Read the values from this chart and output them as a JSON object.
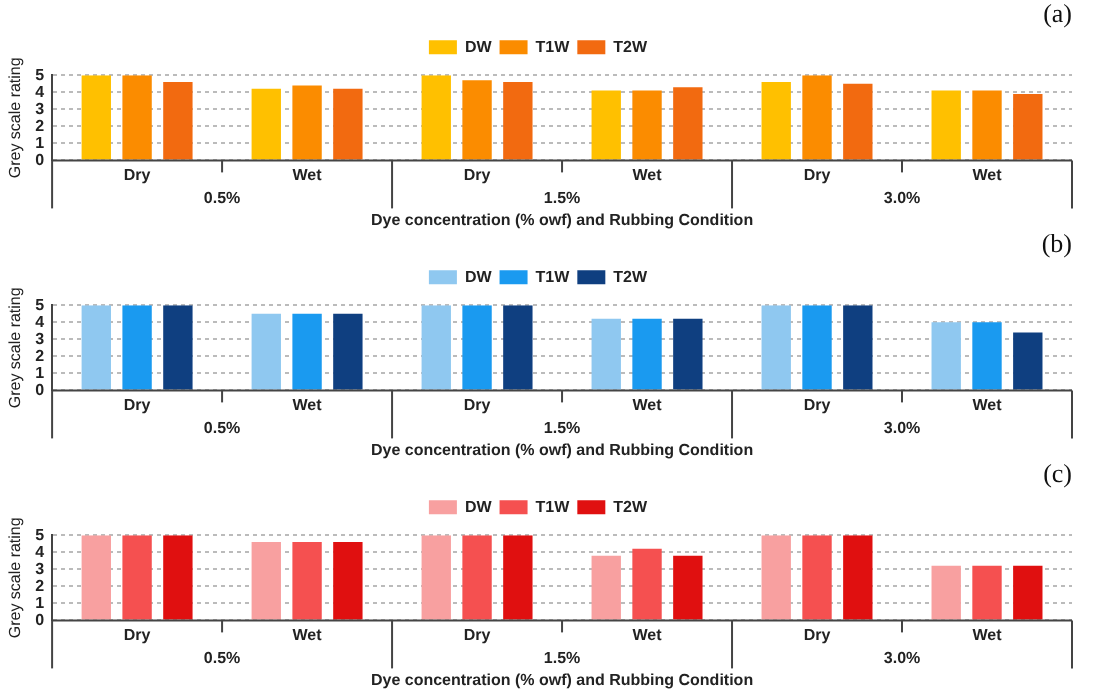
{
  "chart_data": [
    {
      "type": "bar",
      "title": "(a)",
      "ylabel": "Grey scale rating",
      "xlabel": "Dye concentration (% owf) and Rubbing Condition",
      "categories": [
        "Dry",
        "Wet",
        "Dry",
        "Wet",
        "Dry",
        "Wet"
      ],
      "annotations": [
        "0.5%",
        "1.5%",
        "3.0%"
      ],
      "series": [
        {
          "name": "DW",
          "color": "#ffc000",
          "values": [
            5,
            4.2,
            5,
            4.1,
            4.6,
            4.1
          ]
        },
        {
          "name": "T1W",
          "color": "#fb8c00",
          "values": [
            5,
            4.4,
            4.7,
            4.1,
            5,
            4.1
          ]
        },
        {
          "name": "T2W",
          "color": "#f26a10",
          "values": [
            4.6,
            4.2,
            4.6,
            4.3,
            4.5,
            3.9
          ]
        }
      ],
      "ylim": [
        0,
        5
      ],
      "yticks": [
        0,
        1,
        2,
        3,
        4,
        5
      ],
      "grid": "y",
      "legend": "top"
    },
    {
      "type": "bar",
      "title": "(b)",
      "ylabel": "Grey scale rating",
      "xlabel": "Dye concentration (% owf) and Rubbing Condition",
      "categories": [
        "Dry",
        "Wet",
        "Dry",
        "Wet",
        "Dry",
        "Wet"
      ],
      "annotations": [
        "0.5%",
        "1.5%",
        "3.0%"
      ],
      "series": [
        {
          "name": "DW",
          "color": "#8fc8f0",
          "values": [
            5,
            4.5,
            5,
            4.2,
            5,
            4.0
          ]
        },
        {
          "name": "T1W",
          "color": "#1a9af0",
          "values": [
            5,
            4.5,
            5,
            4.2,
            5,
            4.0
          ]
        },
        {
          "name": "T2W",
          "color": "#0f3f80",
          "values": [
            5,
            4.5,
            5,
            4.2,
            5,
            3.4
          ]
        }
      ],
      "ylim": [
        0,
        5
      ],
      "yticks": [
        0,
        1,
        2,
        3,
        4,
        5
      ],
      "grid": "y",
      "legend": "top"
    },
    {
      "type": "bar",
      "title": "(c)",
      "ylabel": "Grey scale rating",
      "xlabel": "Dye concentration (% owf) and Rubbing Condition",
      "categories": [
        "Dry",
        "Wet",
        "Dry",
        "Wet",
        "Dry",
        "Wet"
      ],
      "annotations": [
        "0.5%",
        "1.5%",
        "3.0%"
      ],
      "series": [
        {
          "name": "DW",
          "color": "#f8a0a0",
          "values": [
            5,
            4.6,
            5,
            3.8,
            5,
            3.2
          ]
        },
        {
          "name": "T1W",
          "color": "#f55050",
          "values": [
            5,
            4.6,
            5,
            4.2,
            5,
            3.2
          ]
        },
        {
          "name": "T2W",
          "color": "#e01010",
          "values": [
            5,
            4.6,
            5,
            3.8,
            5,
            3.2
          ]
        }
      ],
      "ylim": [
        0,
        5
      ],
      "yticks": [
        0,
        1,
        2,
        3,
        4,
        5
      ],
      "grid": "y",
      "legend": "top"
    }
  ]
}
